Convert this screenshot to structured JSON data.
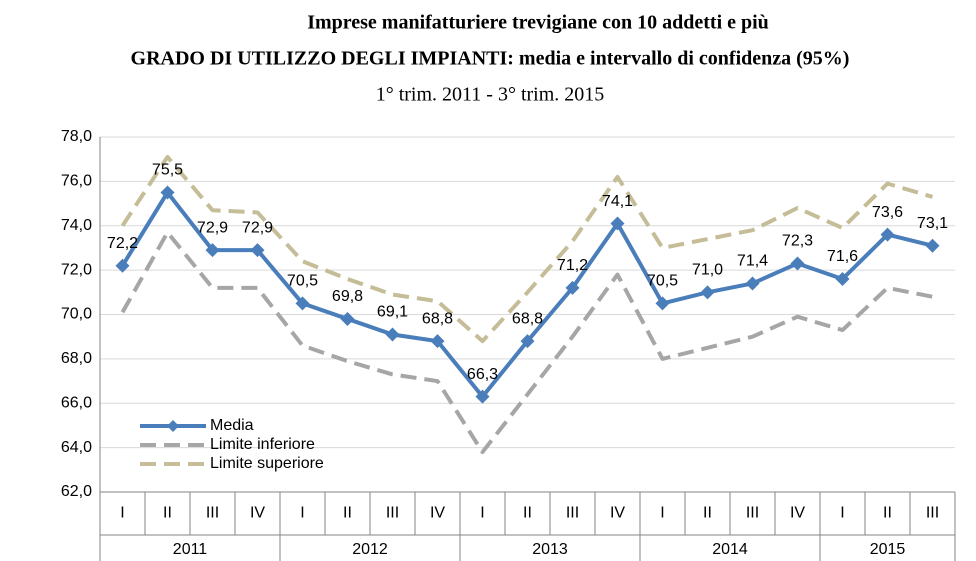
{
  "chart_data": {
    "type": "line",
    "title": "Imprese manifatturiere trevigiane con 10 addetti e più",
    "subtitle": "GRADO DI UTILIZZO DEGLI IMPIANTI:  media e intervallo di confidenza (95%)",
    "period": "1° trim. 2011 - 3° trim. 2015",
    "year_groups": [
      {
        "label": "2011",
        "quarters": [
          "I",
          "II",
          "III",
          "IV"
        ]
      },
      {
        "label": "2012",
        "quarters": [
          "I",
          "II",
          "III",
          "IV"
        ]
      },
      {
        "label": "2013",
        "quarters": [
          "I",
          "II",
          "III",
          "IV"
        ]
      },
      {
        "label": "2014",
        "quarters": [
          "I",
          "II",
          "III",
          "IV"
        ]
      },
      {
        "label": "2015",
        "quarters": [
          "I",
          "II",
          "III"
        ]
      }
    ],
    "ylim": [
      62,
      78
    ],
    "yticks": [
      {
        "value": 62,
        "label": "62,0"
      },
      {
        "value": 64,
        "label": "64,0"
      },
      {
        "value": 66,
        "label": "66,0"
      },
      {
        "value": 68,
        "label": "68,0"
      },
      {
        "value": 70,
        "label": "70,0"
      },
      {
        "value": 72,
        "label": "72,0"
      },
      {
        "value": 74,
        "label": "74,0"
      },
      {
        "value": 76,
        "label": "76,0"
      },
      {
        "value": 78,
        "label": "78,0"
      }
    ],
    "grid": true,
    "legend": "lower-left",
    "series": [
      {
        "name": "Media",
        "color": "#4a7ebb",
        "style": "solid",
        "marker": "diamond",
        "values": [
          72.2,
          75.5,
          72.9,
          72.9,
          70.5,
          69.8,
          69.1,
          68.8,
          66.3,
          68.8,
          71.2,
          74.1,
          70.5,
          71.0,
          71.4,
          72.3,
          71.6,
          73.6,
          73.1
        ],
        "value_labels": [
          "72,2",
          "75,5",
          "72,9",
          "72,9",
          "70,5",
          "69,8",
          "69,1",
          "68,8",
          "66,3",
          "68,8",
          "71,2",
          "74,1",
          "70,5",
          "71,0",
          "71,4",
          "72,3",
          "71,6",
          "73,6",
          "73,1"
        ]
      },
      {
        "name": "Limite inferiore",
        "color": "#a6a6a6",
        "style": "dashed",
        "values": [
          70.1,
          73.7,
          71.2,
          71.2,
          68.6,
          67.9,
          67.3,
          67.0,
          63.8,
          66.4,
          69.0,
          71.8,
          68.0,
          68.5,
          69.0,
          69.9,
          69.3,
          71.2,
          70.8
        ]
      },
      {
        "name": "Limite superiore",
        "color": "#c4bd97",
        "style": "dashed",
        "values": [
          74.0,
          77.1,
          74.7,
          74.6,
          72.4,
          71.6,
          70.9,
          70.6,
          68.8,
          71.0,
          73.3,
          76.2,
          73.0,
          73.4,
          73.8,
          74.8,
          73.9,
          75.9,
          75.3
        ]
      }
    ]
  }
}
